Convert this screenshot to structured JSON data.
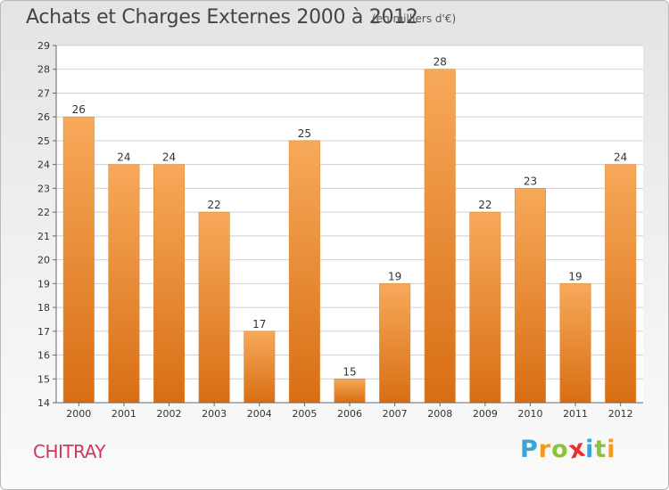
{
  "header": {
    "title": "Achats et Charges Externes 2000 à 2012",
    "unit": "(en milliers d'€)"
  },
  "footer": {
    "town": "CHITRAY",
    "logo_letters": [
      "P",
      "r",
      "o",
      "x",
      "i",
      "t",
      "i"
    ],
    "logo_colors": [
      "#3aa3d8",
      "#f39a1d",
      "#8bc33a",
      "#e8312f",
      "#3aa3d8",
      "#8bc33a",
      "#f39a1d"
    ]
  },
  "chart_data": {
    "type": "bar",
    "title": "Achats et Charges Externes 2000 à 2012",
    "subtitle": "(en milliers d'€)",
    "categories": [
      "2000",
      "2001",
      "2002",
      "2003",
      "2004",
      "2005",
      "2006",
      "2007",
      "2008",
      "2009",
      "2010",
      "2011",
      "2012"
    ],
    "values": [
      26,
      24,
      24,
      22,
      17,
      25,
      15,
      19,
      28,
      22,
      23,
      19,
      24
    ],
    "ylim": [
      14,
      29
    ],
    "yticks": [
      14,
      15,
      16,
      17,
      18,
      19,
      20,
      21,
      22,
      23,
      24,
      25,
      26,
      27,
      28,
      29
    ],
    "grid": true,
    "bar_color_top": "#f7a95a",
    "bar_color_bottom": "#d86e14",
    "grid_color": "#cfcfcf"
  }
}
